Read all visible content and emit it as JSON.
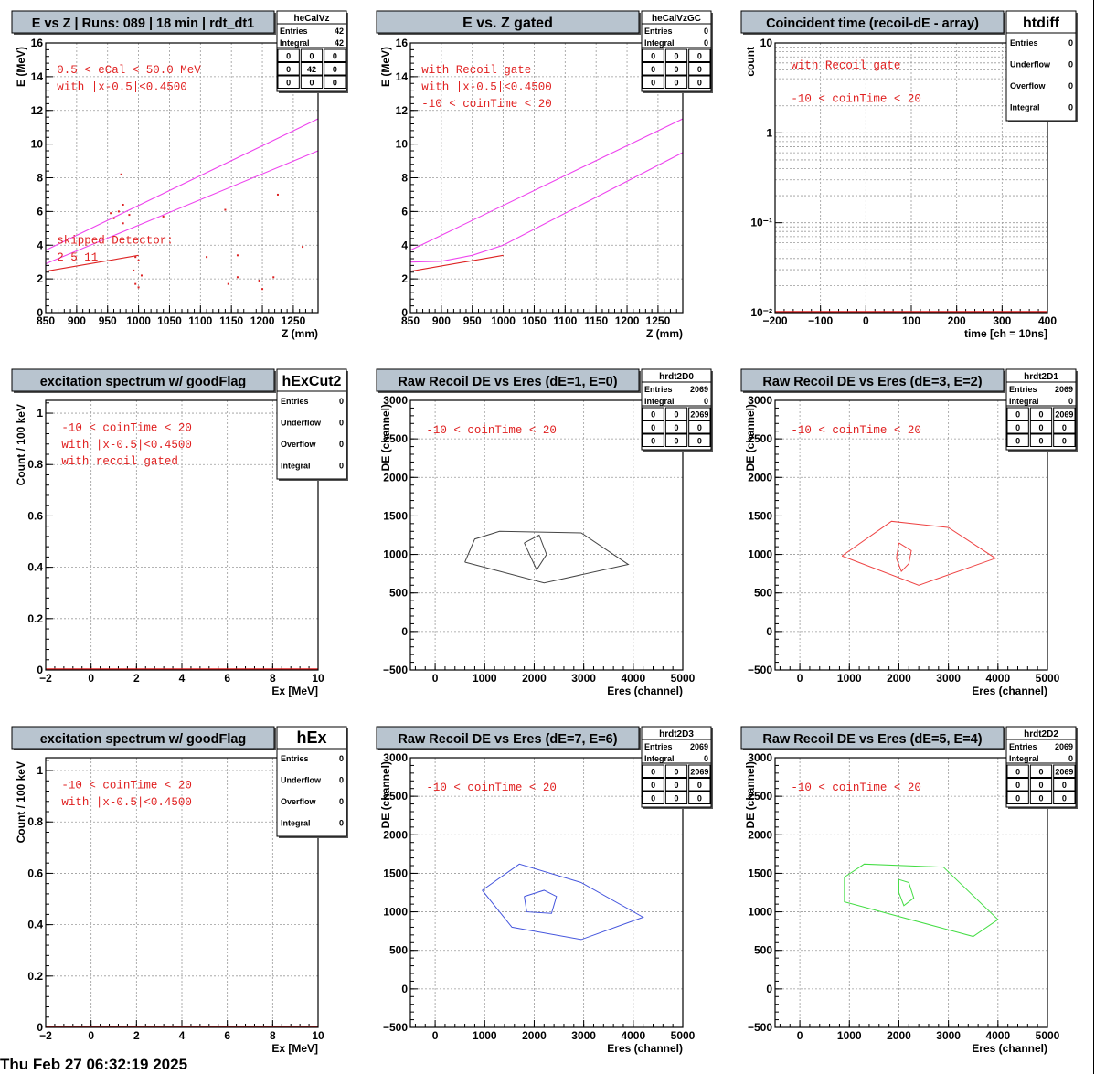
{
  "footer": "Thu Feb 27 06:32:19 2025",
  "chart_data": [
    {
      "id": "pad1",
      "type": "scatter",
      "title": "E vs Z | Runs: 089 | 18 min | rdt_dt1",
      "xlabel": "Z (mm)",
      "ylabel": "E (MeV)",
      "xlim": [
        850,
        1290
      ],
      "ylim": [
        0,
        16
      ],
      "log_y": false,
      "grid": true,
      "xticks": [
        850,
        900,
        950,
        1000,
        1050,
        1100,
        1150,
        1200,
        1250
      ],
      "yticks": [
        0,
        2,
        4,
        6,
        8,
        10,
        12,
        14,
        16
      ],
      "stats": {
        "name": "heCalVz",
        "rows": [
          [
            "Entries",
            "42"
          ],
          [
            "Integral",
            "42"
          ]
        ],
        "matrix": [
          [
            "0",
            "0",
            "0"
          ],
          [
            "0",
            "42",
            "0"
          ],
          [
            "0",
            "0",
            "0"
          ]
        ]
      },
      "annotations": [
        {
          "text": "0.5 < eCal < 50.0 MeV",
          "x": 868,
          "y": 14.2
        },
        {
          "text": "with |x-0.5|<0.4500",
          "x": 868,
          "y": 13.2
        },
        {
          "text": "skipped Detector:",
          "x": 868,
          "y": 4.1
        },
        {
          "text": "2    5    11",
          "x": 868,
          "y": 3.1
        }
      ],
      "lines": [
        {
          "color": "#ee44ee",
          "points": [
            [
              850,
              3.7
            ],
            [
              1290,
              11.5
            ]
          ]
        },
        {
          "color": "#ee44ee",
          "points": [
            [
              850,
              2.9
            ],
            [
              1290,
              9.6
            ]
          ]
        },
        {
          "color": "#dd2222",
          "points": [
            [
              850,
              2.45
            ],
            [
              1000,
              3.4
            ]
          ]
        }
      ],
      "points": [
        [
          972,
          8.2
        ],
        [
          975,
          6.4
        ],
        [
          968,
          6.0
        ],
        [
          975,
          5.3
        ],
        [
          960,
          5.6
        ],
        [
          955,
          5.9
        ],
        [
          985,
          5.8
        ],
        [
          1040,
          5.7
        ],
        [
          1140,
          6.1
        ],
        [
          1225,
          7.0
        ],
        [
          995,
          3.3
        ],
        [
          1000,
          3.1
        ],
        [
          992,
          2.5
        ],
        [
          1005,
          2.2
        ],
        [
          995,
          1.7
        ],
        [
          1000,
          1.5
        ],
        [
          1160,
          3.4
        ],
        [
          1160,
          2.1
        ],
        [
          1145,
          1.7
        ],
        [
          1195,
          1.9
        ],
        [
          1200,
          1.4
        ],
        [
          1218,
          2.1
        ],
        [
          1265,
          3.9
        ],
        [
          1110,
          3.3
        ]
      ]
    },
    {
      "id": "pad2",
      "type": "scatter",
      "title": "E vs. Z gated",
      "xlabel": "Z (mm)",
      "ylabel": "E (MeV)",
      "xlim": [
        850,
        1290
      ],
      "ylim": [
        0,
        16
      ],
      "log_y": false,
      "grid": true,
      "xticks": [
        850,
        900,
        950,
        1000,
        1050,
        1100,
        1150,
        1200,
        1250
      ],
      "yticks": [
        0,
        2,
        4,
        6,
        8,
        10,
        12,
        14,
        16
      ],
      "stats": {
        "name": "heCalVzGC",
        "rows": [
          [
            "Entries",
            "0"
          ],
          [
            "Integral",
            "0"
          ]
        ],
        "matrix": [
          [
            "0",
            "0",
            "0"
          ],
          [
            "0",
            "0",
            "0"
          ],
          [
            "0",
            "0",
            "0"
          ]
        ]
      },
      "annotations": [
        {
          "text": "with Recoil gate",
          "x": 868,
          "y": 14.2
        },
        {
          "text": "with |x-0.5|<0.4500",
          "x": 868,
          "y": 13.2
        },
        {
          "text": "-10 < coinTime < 20",
          "x": 868,
          "y": 12.2
        }
      ],
      "lines": [
        {
          "color": "#ee44ee",
          "points": [
            [
              850,
              3.7
            ],
            [
              1290,
              11.5
            ]
          ]
        },
        {
          "color": "#ee44ee",
          "points": [
            [
              850,
              3.0
            ],
            [
              900,
              3.05
            ],
            [
              950,
              3.4
            ],
            [
              1000,
              4.0
            ],
            [
              1290,
              9.5
            ]
          ]
        },
        {
          "color": "#dd2222",
          "points": [
            [
              850,
              2.45
            ],
            [
              1000,
              3.4
            ]
          ]
        }
      ],
      "points": []
    },
    {
      "id": "pad3",
      "type": "line",
      "title": "Coincident time (recoil-dE - array)",
      "xlabel": "time [ch = 10ns]",
      "ylabel": "count",
      "xlim": [
        -200,
        400
      ],
      "ylim": [
        0.01,
        10
      ],
      "log_y": true,
      "grid": true,
      "xticks": [
        -200,
        -100,
        0,
        100,
        200,
        300,
        400
      ],
      "yticks_log": [
        {
          "v": 0.01,
          "label": "10⁻²"
        },
        {
          "v": 0.1,
          "label": "10⁻¹"
        },
        {
          "v": 1,
          "label": "1"
        },
        {
          "v": 10,
          "label": "10"
        }
      ],
      "stats": {
        "name": "htdiff",
        "big": true,
        "rows": [
          [
            "Entries",
            "0"
          ],
          [
            "Underflow",
            "0"
          ],
          [
            "Overflow",
            "0"
          ],
          [
            "Integral",
            "0"
          ]
        ]
      },
      "annotations": [
        {
          "text": "with Recoil gate",
          "x": -165,
          "y": 5.2
        },
        {
          "text": "-10 < coinTime < 20",
          "x": -165,
          "y": 2.2
        }
      ],
      "baseline": {
        "color": "#dd2222",
        "y": 0.01
      }
    },
    {
      "id": "pad4",
      "type": "line",
      "title": "excitation spectrum w/ goodFlag",
      "xlabel": "Ex [MeV]",
      "ylabel": "Count / 100 keV",
      "xlim": [
        -2,
        10
      ],
      "ylim": [
        0,
        1.05
      ],
      "log_y": false,
      "grid": true,
      "xticks": [
        -2,
        0,
        2,
        4,
        6,
        8,
        10
      ],
      "yticks": [
        0,
        0.2,
        0.4,
        0.6,
        0.8,
        1
      ],
      "stats": {
        "name": "hExCut2",
        "big": true,
        "rows": [
          [
            "Entries",
            "0"
          ],
          [
            "Underflow",
            "0"
          ],
          [
            "Overflow",
            "0"
          ],
          [
            "Integral",
            "0"
          ]
        ]
      },
      "annotations": [
        {
          "text": "-10 < coinTime < 20",
          "x": -1.3,
          "y": 0.93
        },
        {
          "text": "with |x-0.5|<0.4500",
          "x": -1.3,
          "y": 0.865
        },
        {
          "text": "with recoil gated",
          "x": -1.3,
          "y": 0.8
        }
      ],
      "baseline": {
        "color": "#dd2222",
        "y": 0
      }
    },
    {
      "id": "pad5",
      "type": "scatter",
      "title": "Raw Recoil DE vs Eres (dE=1, E=0)",
      "xlabel": "Eres (channel)",
      "ylabel": "DE (channel)",
      "xlim": [
        -500,
        5000
      ],
      "ylim": [
        -500,
        3000
      ],
      "log_y": false,
      "grid": true,
      "xticks": [
        0,
        1000,
        2000,
        3000,
        4000,
        5000
      ],
      "yticks": [
        -500,
        0,
        500,
        1000,
        1500,
        2000,
        2500,
        3000
      ],
      "stats": {
        "name": "hrdt2D0",
        "rows": [
          [
            "Entries",
            "2069"
          ],
          [
            "Integral",
            "0"
          ]
        ],
        "matrix": [
          [
            "0",
            "0",
            "2069"
          ],
          [
            "0",
            "0",
            "0"
          ],
          [
            "0",
            "0",
            "0"
          ]
        ]
      },
      "annotations": [
        {
          "text": "-10 < coinTime < 20",
          "x": -180,
          "y": 2570
        }
      ],
      "cuts": [
        {
          "color": "#444444",
          "points": [
            [
              600,
              900
            ],
            [
              800,
              1200
            ],
            [
              1300,
              1300
            ],
            [
              2950,
              1280
            ],
            [
              3900,
              870
            ],
            [
              2200,
              630
            ],
            [
              600,
              900
            ]
          ]
        },
        {
          "color": "#444444",
          "points": [
            [
              1800,
              1150
            ],
            [
              2100,
              1250
            ],
            [
              2250,
              1000
            ],
            [
              2050,
              800
            ],
            [
              1800,
              1150
            ]
          ]
        }
      ]
    },
    {
      "id": "pad6",
      "type": "scatter",
      "title": "Raw Recoil DE vs Eres (dE=3, E=2)",
      "xlabel": "Eres (channel)",
      "ylabel": "DE (channel)",
      "xlim": [
        -500,
        5000
      ],
      "ylim": [
        -500,
        3000
      ],
      "log_y": false,
      "grid": true,
      "xticks": [
        0,
        1000,
        2000,
        3000,
        4000,
        5000
      ],
      "yticks": [
        -500,
        0,
        500,
        1000,
        1500,
        2000,
        2500,
        3000
      ],
      "stats": {
        "name": "hrdt2D1",
        "rows": [
          [
            "Entries",
            "2069"
          ],
          [
            "Integral",
            "0"
          ]
        ],
        "matrix": [
          [
            "0",
            "0",
            "2069"
          ],
          [
            "0",
            "0",
            "0"
          ],
          [
            "0",
            "0",
            "0"
          ]
        ]
      },
      "annotations": [
        {
          "text": "-10 < coinTime < 20",
          "x": -180,
          "y": 2570
        }
      ],
      "cuts": [
        {
          "color": "#ee4444",
          "points": [
            [
              850,
              980
            ],
            [
              1850,
              1430
            ],
            [
              3000,
              1350
            ],
            [
              3950,
              950
            ],
            [
              2400,
              600
            ],
            [
              850,
              980
            ]
          ]
        },
        {
          "color": "#ee4444",
          "points": [
            [
              2000,
              1150
            ],
            [
              2250,
              1050
            ],
            [
              2200,
              880
            ],
            [
              2050,
              780
            ],
            [
              1950,
              950
            ],
            [
              2000,
              1150
            ]
          ]
        }
      ]
    },
    {
      "id": "pad7",
      "type": "line",
      "title": "excitation spectrum w/ goodFlag",
      "xlabel": "Ex [MeV]",
      "ylabel": "Count / 100 keV",
      "xlim": [
        -2,
        10
      ],
      "ylim": [
        0,
        1.05
      ],
      "log_y": false,
      "grid": true,
      "xticks": [
        -2,
        0,
        2,
        4,
        6,
        8,
        10
      ],
      "yticks": [
        0,
        0.2,
        0.4,
        0.6,
        0.8,
        1
      ],
      "stats": {
        "name": "hEx",
        "big": true,
        "rows": [
          [
            "Entries",
            "0"
          ],
          [
            "Underflow",
            "0"
          ],
          [
            "Overflow",
            "0"
          ],
          [
            "Integral",
            "0"
          ]
        ]
      },
      "annotations": [
        {
          "text": "-10 < coinTime < 20",
          "x": -1.3,
          "y": 0.93
        },
        {
          "text": "with |x-0.5|<0.4500",
          "x": -1.3,
          "y": 0.865
        }
      ],
      "baseline": {
        "color": "#dd2222",
        "y": 0
      }
    },
    {
      "id": "pad8",
      "type": "scatter",
      "title": "Raw Recoil DE vs Eres (dE=7, E=6)",
      "xlabel": "Eres (channel)",
      "ylabel": "DE (channel)",
      "xlim": [
        -500,
        5000
      ],
      "ylim": [
        -500,
        3000
      ],
      "log_y": false,
      "grid": true,
      "xticks": [
        0,
        1000,
        2000,
        3000,
        4000,
        5000
      ],
      "yticks": [
        -500,
        0,
        500,
        1000,
        1500,
        2000,
        2500,
        3000
      ],
      "stats": {
        "name": "hrdt2D3",
        "rows": [
          [
            "Entries",
            "2069"
          ],
          [
            "Integral",
            "0"
          ]
        ],
        "matrix": [
          [
            "0",
            "0",
            "2069"
          ],
          [
            "0",
            "0",
            "0"
          ],
          [
            "0",
            "0",
            "0"
          ]
        ]
      },
      "annotations": [
        {
          "text": "-10 < coinTime < 20",
          "x": -180,
          "y": 2570
        }
      ],
      "cuts": [
        {
          "color": "#4455dd",
          "points": [
            [
              950,
              1280
            ],
            [
              1700,
              1620
            ],
            [
              2950,
              1380
            ],
            [
              4200,
              930
            ],
            [
              2950,
              640
            ],
            [
              1550,
              800
            ],
            [
              950,
              1280
            ]
          ]
        },
        {
          "color": "#4455dd",
          "points": [
            [
              1800,
              1200
            ],
            [
              2200,
              1280
            ],
            [
              2450,
              1200
            ],
            [
              2350,
              980
            ],
            [
              1850,
              1000
            ],
            [
              1800,
              1200
            ]
          ]
        }
      ]
    },
    {
      "id": "pad9",
      "type": "scatter",
      "title": "Raw Recoil DE vs Eres (dE=5, E=4)",
      "xlabel": "Eres (channel)",
      "ylabel": "DE (channel)",
      "xlim": [
        -500,
        5000
      ],
      "ylim": [
        -500,
        3000
      ],
      "log_y": false,
      "grid": true,
      "xticks": [
        0,
        1000,
        2000,
        3000,
        4000,
        5000
      ],
      "yticks": [
        -500,
        0,
        500,
        1000,
        1500,
        2000,
        2500,
        3000
      ],
      "stats": {
        "name": "hrdt2D2",
        "rows": [
          [
            "Entries",
            "2069"
          ],
          [
            "Integral",
            "0"
          ]
        ],
        "matrix": [
          [
            "0",
            "0",
            "2069"
          ],
          [
            "0",
            "0",
            "0"
          ],
          [
            "0",
            "0",
            "0"
          ]
        ]
      },
      "annotations": [
        {
          "text": "-10 < coinTime < 20",
          "x": -180,
          "y": 2570
        }
      ],
      "cuts": [
        {
          "color": "#44dd44",
          "points": [
            [
              900,
              1450
            ],
            [
              1300,
              1620
            ],
            [
              2900,
              1580
            ],
            [
              4000,
              900
            ],
            [
              3500,
              680
            ],
            [
              900,
              1130
            ],
            [
              900,
              1450
            ]
          ]
        },
        {
          "color": "#44dd44",
          "points": [
            [
              2000,
              1420
            ],
            [
              2200,
              1380
            ],
            [
              2300,
              1180
            ],
            [
              2100,
              1080
            ],
            [
              2000,
              1250
            ],
            [
              2000,
              1420
            ]
          ]
        }
      ]
    }
  ]
}
